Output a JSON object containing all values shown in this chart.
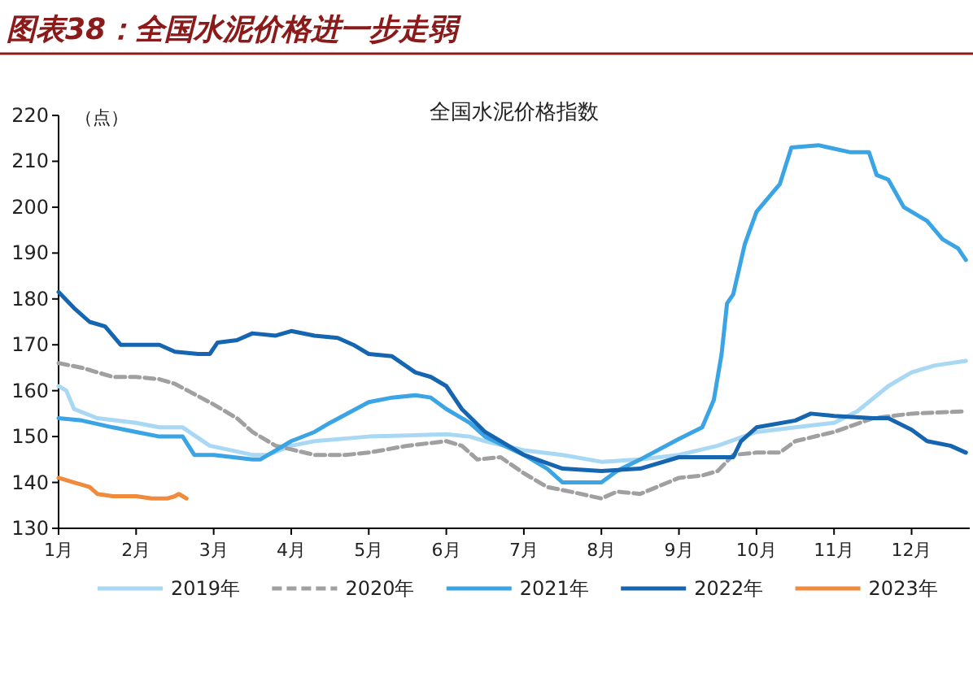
{
  "chart_data": {
    "type": "line",
    "title": "全国水泥价格指数",
    "subtitle": "图表38：全国水泥价格进一步走弱",
    "ylabel": "（点）",
    "xlim": [
      1,
      12.75
    ],
    "xticks": [
      {
        "value": 1,
        "label": "1月"
      },
      {
        "value": 2,
        "label": "2月"
      },
      {
        "value": 3,
        "label": "3月"
      },
      {
        "value": 4,
        "label": "4月"
      },
      {
        "value": 5,
        "label": "5月"
      },
      {
        "value": 6,
        "label": "6月"
      },
      {
        "value": 7,
        "label": "7月"
      },
      {
        "value": 8,
        "label": "8月"
      },
      {
        "value": 9,
        "label": "9月"
      },
      {
        "value": 10,
        "label": "10月"
      },
      {
        "value": 11,
        "label": "11月"
      },
      {
        "value": 12,
        "label": "12月"
      }
    ],
    "ylim": [
      130,
      220
    ],
    "yticks": [
      130,
      140,
      150,
      160,
      170,
      180,
      190,
      200,
      210,
      220
    ],
    "legend": "bottom",
    "series": [
      {
        "name": "2019年",
        "color": "#a8d8f4",
        "x": [
          1.0,
          1.1,
          1.2,
          1.5,
          2.0,
          2.3,
          2.6,
          2.95,
          3.5,
          3.7,
          4.0,
          4.3,
          5.0,
          6.0,
          6.3,
          6.5,
          7.0,
          7.5,
          8.0,
          8.5,
          9.0,
          9.5,
          10.0,
          10.5,
          11.0,
          11.3,
          11.7,
          12.0,
          12.3,
          12.7
        ],
        "values": [
          161,
          160,
          156,
          154,
          153,
          152,
          152,
          148,
          146,
          146,
          148,
          149,
          150,
          150.5,
          150,
          149,
          147,
          146,
          144.5,
          145,
          146,
          148,
          151,
          152,
          153,
          155.5,
          161,
          164,
          165.5,
          166.5
        ]
      },
      {
        "name": "2020年",
        "color": "#a0a0a0",
        "line_style": "dashed",
        "x": [
          1.0,
          1.3,
          1.7,
          2.0,
          2.3,
          2.5,
          3.0,
          3.3,
          3.5,
          3.8,
          4.3,
          4.7,
          5.0,
          5.5,
          6.0,
          6.2,
          6.4,
          6.7,
          7.0,
          7.3,
          7.6,
          8.0,
          8.2,
          8.5,
          9.0,
          9.3,
          9.5,
          9.7,
          10.0,
          10.3,
          10.5,
          11.0,
          11.5,
          12.0,
          12.7
        ],
        "values": [
          166,
          165,
          163,
          163,
          162.5,
          161.5,
          157,
          154,
          151,
          148,
          146,
          146,
          146.5,
          148,
          149,
          148,
          145,
          145.5,
          142,
          139,
          138,
          136.5,
          138,
          137.5,
          141,
          141.5,
          142.5,
          146,
          146.5,
          146.5,
          149,
          151,
          154,
          155,
          155.5
        ]
      },
      {
        "name": "2021年",
        "color": "#3aa4e4",
        "x": [
          1.0,
          1.3,
          1.7,
          2.0,
          2.3,
          2.6,
          2.75,
          3.0,
          3.5,
          3.6,
          3.8,
          4.0,
          4.3,
          4.5,
          5.0,
          5.3,
          5.6,
          5.8,
          6.0,
          6.3,
          6.5,
          7.0,
          7.3,
          7.5,
          8.0,
          8.2,
          8.5,
          9.0,
          9.3,
          9.45,
          9.55,
          9.62,
          9.7,
          9.85,
          10.0,
          10.2,
          10.3,
          10.45,
          10.8,
          11.2,
          11.45,
          11.55,
          11.7,
          11.9,
          12.2,
          12.4,
          12.6,
          12.7
        ],
        "values": [
          154,
          153.5,
          152,
          151,
          150,
          150,
          146,
          146,
          145,
          145,
          147,
          149,
          151,
          153,
          157.5,
          158.5,
          159,
          158.5,
          156,
          153,
          150,
          146,
          143,
          140,
          140,
          142.5,
          145,
          149.5,
          152,
          158,
          168,
          179,
          181,
          192,
          199,
          203,
          205,
          213,
          213.5,
          212,
          212,
          207,
          206,
          200,
          197,
          193,
          191,
          188.5
        ]
      },
      {
        "name": "2022年",
        "color": "#1565b0",
        "x": [
          1.0,
          1.2,
          1.4,
          1.6,
          1.8,
          2.0,
          2.3,
          2.5,
          2.8,
          2.95,
          3.05,
          3.3,
          3.5,
          3.8,
          4.0,
          4.3,
          4.6,
          4.8,
          5.0,
          5.3,
          5.6,
          5.8,
          6.0,
          6.2,
          6.5,
          7.0,
          7.5,
          8.0,
          8.5,
          9.0,
          9.7,
          9.8,
          10.0,
          10.5,
          10.7,
          11.0,
          11.5,
          11.7,
          12.0,
          12.2,
          12.5,
          12.7
        ],
        "values": [
          181.5,
          178,
          175,
          174,
          170,
          170,
          170,
          168.5,
          168,
          168,
          170.5,
          171,
          172.5,
          172,
          173,
          172,
          171.5,
          170,
          168,
          167.5,
          164,
          163,
          161,
          156,
          151,
          146,
          143,
          142.5,
          143,
          145.5,
          145.5,
          149,
          152,
          153.5,
          155,
          154.5,
          154,
          154,
          151.5,
          149,
          148,
          146.5
        ]
      },
      {
        "name": "2023年",
        "color": "#f08a3c",
        "x": [
          1.0,
          1.2,
          1.4,
          1.5,
          1.7,
          2.0,
          2.2,
          2.4,
          2.5,
          2.55,
          2.6,
          2.65
        ],
        "values": [
          141,
          140,
          139,
          137.5,
          137,
          137,
          136.5,
          136.5,
          137,
          137.5,
          137,
          136.5
        ]
      }
    ]
  }
}
